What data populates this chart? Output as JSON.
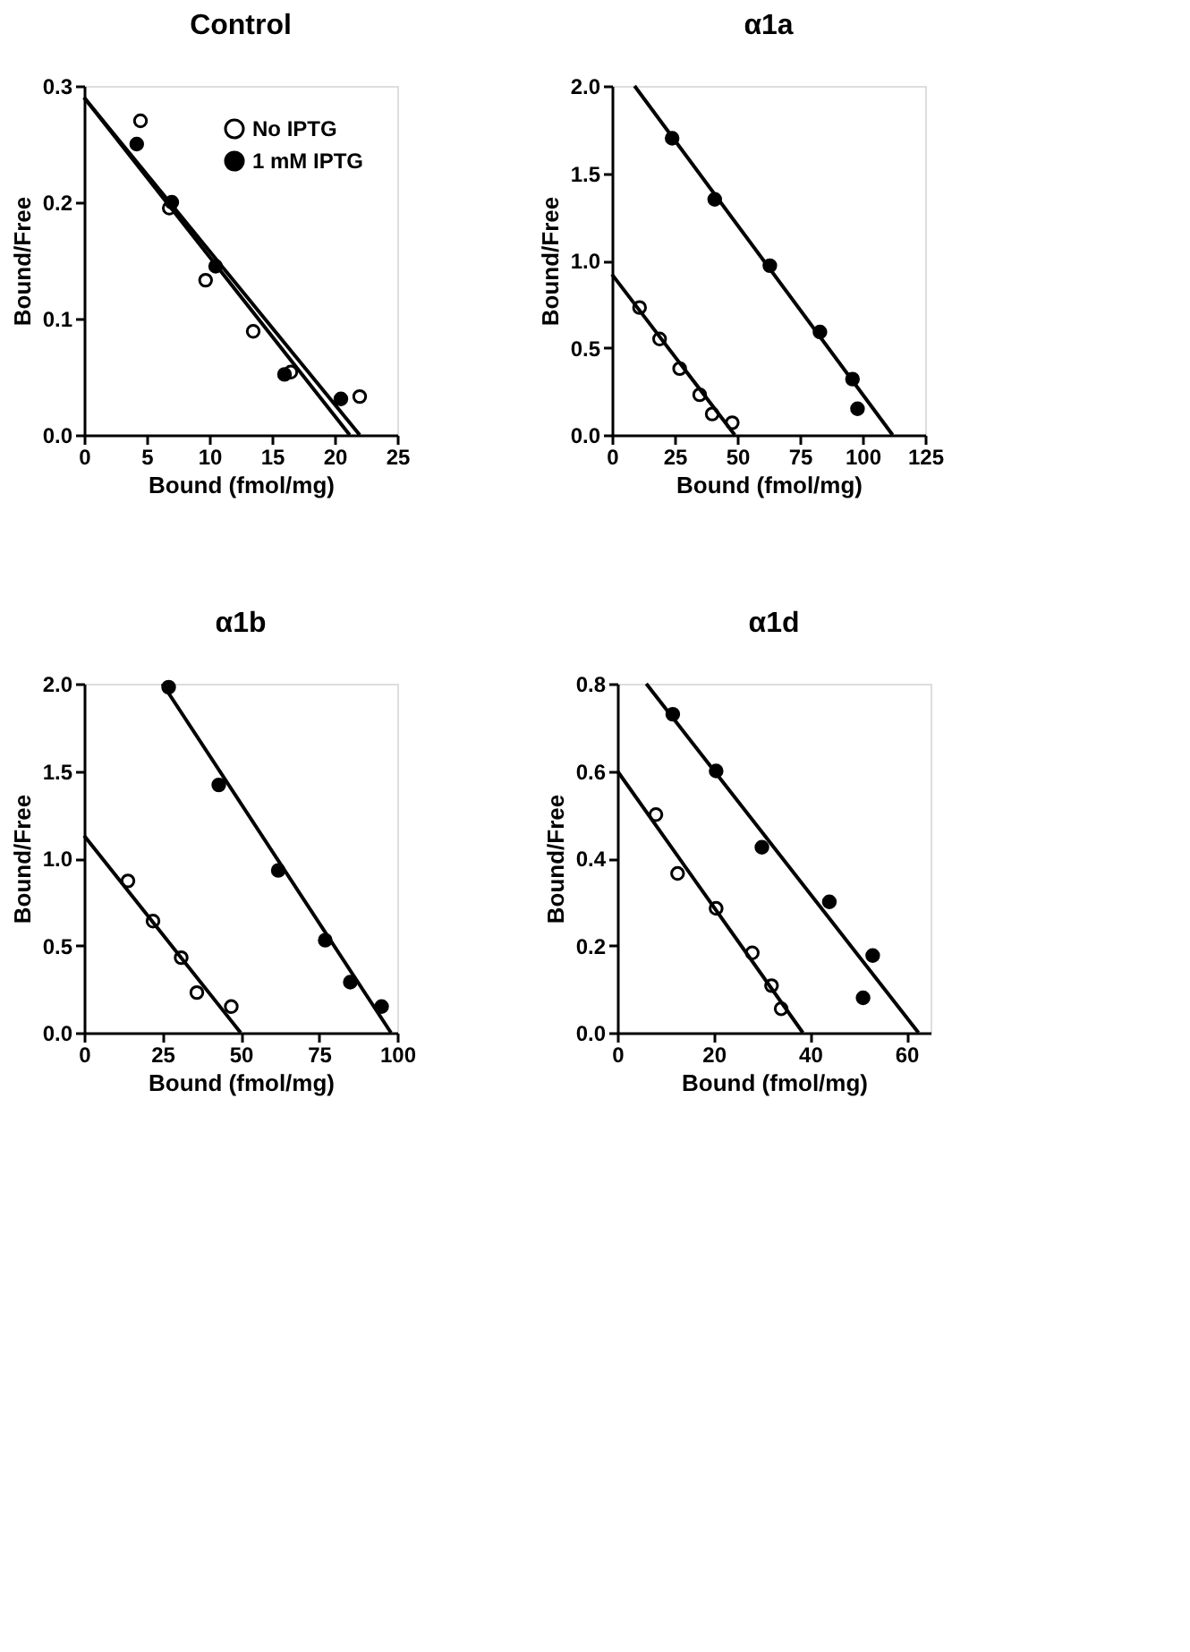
{
  "chart_data": [
    {
      "type": "scatter",
      "title": "Control",
      "xlabel": "Bound (fmol/mg)",
      "ylabel": "Bound/Free",
      "xlim": [
        0,
        25
      ],
      "xticks": [
        0,
        5,
        10,
        15,
        20,
        25
      ],
      "ylim": [
        0,
        0.3
      ],
      "yticks": [
        {
          "value": 0,
          "label": "0.0"
        },
        0.1,
        0.2,
        0.3
      ],
      "grid": false,
      "legend": "top right",
      "series": [
        {
          "type": "scatter",
          "name": "No IPTG",
          "color": "#ffffff",
          "marker": "circle",
          "x": [
            4.5,
            6.8,
            9.7,
            13.5,
            16.5,
            22
          ],
          "values": [
            0.27,
            0.195,
            0.133,
            0.089,
            0.054,
            0.033
          ]
        },
        {
          "type": "scatter",
          "name": "1 mM IPTG",
          "color": "#000000",
          "marker": "circle",
          "x": [
            4.2,
            7,
            10.5,
            16,
            20.5
          ],
          "values": [
            0.25,
            0.2,
            0.145,
            0.052,
            0.031
          ]
        },
        {
          "type": "line",
          "marker": "none",
          "color": "#000000",
          "x": [
            0,
            22
          ],
          "values": [
            0.29,
            0
          ]
        },
        {
          "type": "line",
          "marker": "none",
          "color": "#000000",
          "x": [
            0,
            21.2
          ],
          "values": [
            0.29,
            0
          ]
        }
      ]
    },
    {
      "type": "scatter",
      "title": "α1a",
      "xlabel": "Bound (fmol/mg)",
      "ylabel": "Bound/Free",
      "xlim": [
        0,
        125
      ],
      "xticks": [
        0,
        25,
        50,
        75,
        100,
        125
      ],
      "ylim": [
        0,
        2
      ],
      "yticks": [
        {
          "value": 0,
          "label": "0.0"
        },
        0.5,
        {
          "value": 1,
          "label": "1.0"
        },
        1.5,
        {
          "value": 2,
          "label": "2.0"
        }
      ],
      "grid": false,
      "series": [
        {
          "type": "scatter",
          "color": "#ffffff",
          "marker": "circle",
          "x": [
            11,
            19,
            27,
            35,
            40,
            48
          ],
          "values": [
            0.73,
            0.55,
            0.38,
            0.23,
            0.12,
            0.07
          ]
        },
        {
          "type": "scatter",
          "color": "#000000",
          "marker": "circle",
          "x": [
            24,
            41,
            63,
            83,
            96,
            98
          ],
          "values": [
            1.7,
            1.35,
            0.97,
            0.59,
            0.32,
            0.15
          ]
        },
        {
          "type": "line",
          "marker": "none",
          "color": "#000000",
          "x": [
            0,
            49
          ],
          "values": [
            0.92,
            0
          ]
        },
        {
          "type": "line",
          "marker": "none",
          "color": "#000000",
          "x": [
            9,
            112
          ],
          "values": [
            2.0,
            0
          ]
        }
      ]
    },
    {
      "type": "scatter",
      "title": "α1b",
      "xlabel": "Bound (fmol/mg)",
      "ylabel": "Bound/Free",
      "xlim": [
        0,
        100
      ],
      "xticks": [
        0,
        25,
        50,
        75,
        100
      ],
      "ylim": [
        0,
        2
      ],
      "yticks": [
        {
          "value": 0,
          "label": "0.0"
        },
        0.5,
        {
          "value": 1,
          "label": "1.0"
        },
        1.5,
        {
          "value": 2,
          "label": "2.0"
        }
      ],
      "grid": false,
      "series": [
        {
          "type": "scatter",
          "color": "#ffffff",
          "marker": "circle",
          "x": [
            14,
            22,
            31,
            36,
            47
          ],
          "values": [
            0.87,
            0.64,
            0.43,
            0.23,
            0.15
          ]
        },
        {
          "type": "scatter",
          "color": "#000000",
          "marker": "circle",
          "x": [
            27,
            43,
            62,
            77,
            85,
            95
          ],
          "values": [
            1.98,
            1.42,
            0.93,
            0.53,
            0.29,
            0.15
          ]
        },
        {
          "type": "line",
          "marker": "none",
          "color": "#000000",
          "x": [
            0,
            50
          ],
          "values": [
            1.13,
            0
          ]
        },
        {
          "type": "line",
          "marker": "none",
          "color": "#000000",
          "x": [
            25,
            98
          ],
          "values": [
            2.0,
            0
          ]
        }
      ]
    },
    {
      "type": "scatter",
      "title": "α1d",
      "xlabel": "Bound (fmol/mg)",
      "ylabel": "Bound/Free",
      "xlim": [
        0,
        65
      ],
      "xticks": [
        0,
        20,
        40,
        60
      ],
      "ylim": [
        0,
        0.8
      ],
      "yticks": [
        {
          "value": 0,
          "label": "0.0"
        },
        0.2,
        0.4,
        0.6,
        0.8
      ],
      "grid": false,
      "series": [
        {
          "type": "scatter",
          "color": "#ffffff",
          "marker": "circle",
          "x": [
            8,
            12.5,
            20.5,
            28,
            32,
            34
          ],
          "values": [
            0.5,
            0.365,
            0.285,
            0.183,
            0.108,
            0.055
          ]
        },
        {
          "type": "scatter",
          "color": "#000000",
          "marker": "circle",
          "x": [
            11.5,
            20.5,
            30,
            44,
            53,
            51
          ],
          "values": [
            0.73,
            0.6,
            0.425,
            0.3,
            0.177,
            0.08
          ]
        },
        {
          "type": "line",
          "marker": "none",
          "color": "#000000",
          "x": [
            0,
            38.5
          ],
          "values": [
            0.6,
            0
          ]
        },
        {
          "type": "line",
          "marker": "none",
          "color": "#000000",
          "x": [
            6,
            62.5
          ],
          "values": [
            0.8,
            0
          ]
        }
      ]
    }
  ]
}
